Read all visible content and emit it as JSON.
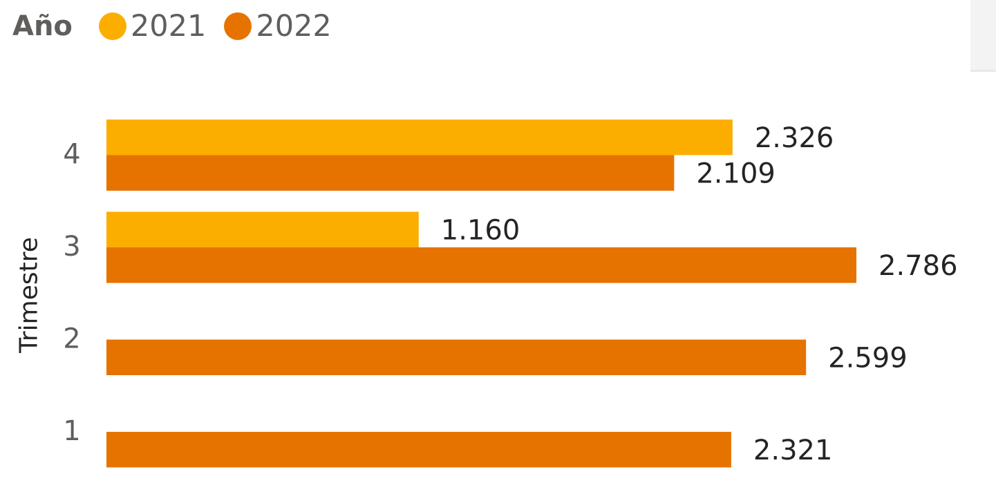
{
  "chart_data": {
    "type": "bar",
    "orientation": "horizontal",
    "legend": {
      "title": "Año",
      "position": "top-left"
    },
    "ylabel": "Trimestre",
    "categories": [
      "4",
      "3",
      "2",
      "1"
    ],
    "series": [
      {
        "name": "2021",
        "color": "#FCAE00",
        "values": [
          2326,
          1160,
          null,
          null
        ],
        "labels": [
          "2.326",
          "1.160",
          "",
          ""
        ]
      },
      {
        "name": "2022",
        "color": "#E67300",
        "values": [
          2109,
          2786,
          2599,
          2321
        ],
        "labels": [
          "2.109",
          "2.786",
          "2.599",
          "2.321"
        ]
      }
    ],
    "xlim": [
      0,
      2786
    ],
    "grid": false
  }
}
